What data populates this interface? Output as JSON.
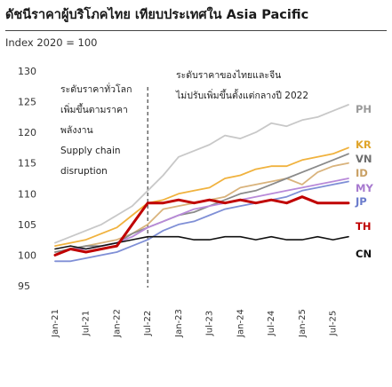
{
  "title": "ดัชนีราคาผู้บริโภคไทย เทียบประเทศใน Asia Pacific",
  "subtitle": "Index 2020 = 100",
  "annotations": {
    "left_line1": "ระดับราคาทั่วโลก",
    "left_line2": "เพิ่มขึ้นตามราคา",
    "left_line3": "พลังงาน",
    "left_line4": "Supply chain",
    "left_line5": "disruption",
    "right_line1": "ระดับราคาของไทยและจีน",
    "right_line2": "ไม่ปรับเพิ่มขึ้นตั้งแต่กลางปี 2022"
  },
  "chart_data": {
    "type": "line",
    "title": "ดัชนีราคาผู้บริโภคไทย เทียบประเทศใน Asia Pacific",
    "ylabel": "Index 2020 = 100",
    "xlabel": "",
    "ylim": [
      95,
      130
    ],
    "y_ticks": [
      95,
      100,
      105,
      110,
      115,
      120,
      125,
      130
    ],
    "x_ticks": [
      "Jan-21",
      "Jul-21",
      "Jan-22",
      "Jul-22",
      "Jan-23",
      "Jul-23",
      "Jan-24",
      "Jul-24",
      "Jan-25",
      "Jul-25"
    ],
    "x": [
      "Jan-21",
      "Apr-21",
      "Jul-21",
      "Oct-21",
      "Jan-22",
      "Apr-22",
      "Jul-22",
      "Oct-22",
      "Jan-23",
      "Apr-23",
      "Jul-23",
      "Oct-23",
      "Jan-24",
      "Apr-24",
      "Jul-24",
      "Oct-24",
      "Jan-25",
      "Apr-25",
      "Jul-25",
      "Oct-25"
    ],
    "vline_at": "Jul-22",
    "series": [
      {
        "name": "PH",
        "color": "#c8c8c8",
        "values": [
          102.0,
          103.0,
          104.0,
          105.0,
          106.5,
          108.0,
          110.5,
          113.0,
          116.0,
          117.0,
          118.0,
          119.5,
          119.0,
          120.0,
          121.5,
          121.0,
          122.0,
          122.5,
          123.5,
          124.5
        ]
      },
      {
        "name": "KR",
        "color": "#f0b23e",
        "values": [
          101.5,
          102.0,
          102.5,
          103.5,
          104.5,
          106.5,
          108.5,
          109.0,
          110.0,
          110.5,
          111.0,
          112.5,
          113.0,
          114.0,
          114.5,
          114.5,
          115.5,
          116.0,
          116.5,
          117.5
        ]
      },
      {
        "name": "VN",
        "color": "#8a8a8a",
        "values": [
          100.5,
          101.0,
          101.5,
          101.5,
          102.0,
          103.5,
          104.5,
          105.5,
          106.5,
          107.0,
          108.0,
          109.0,
          110.0,
          110.5,
          111.5,
          112.5,
          113.5,
          114.5,
          115.5,
          116.5
        ]
      },
      {
        "name": "ID",
        "color": "#d9b37c",
        "values": [
          100.5,
          101.0,
          101.5,
          102.0,
          102.5,
          103.5,
          105.0,
          107.5,
          108.0,
          108.5,
          109.0,
          109.5,
          111.0,
          111.5,
          112.0,
          112.5,
          111.5,
          113.5,
          114.5,
          115.0
        ]
      },
      {
        "name": "MY",
        "color": "#b88ad9",
        "values": [
          100.0,
          101.0,
          101.0,
          101.5,
          102.0,
          103.0,
          104.5,
          105.5,
          106.5,
          107.5,
          108.0,
          108.5,
          109.0,
          109.5,
          110.0,
          110.5,
          111.0,
          111.5,
          112.0,
          112.5
        ]
      },
      {
        "name": "JP",
        "color": "#7f8fd6",
        "values": [
          99.0,
          99.0,
          99.5,
          100.0,
          100.5,
          101.5,
          102.5,
          104.0,
          105.0,
          105.5,
          106.5,
          107.5,
          108.0,
          108.5,
          109.0,
          109.5,
          110.5,
          111.0,
          111.5,
          112.0
        ]
      },
      {
        "name": "TH",
        "color": "#c00000",
        "values": [
          100.0,
          101.0,
          100.5,
          101.0,
          101.5,
          105.0,
          108.5,
          108.5,
          109.0,
          108.5,
          109.0,
          108.5,
          109.0,
          108.5,
          109.0,
          108.5,
          109.5,
          108.5,
          108.5,
          108.5
        ]
      },
      {
        "name": "CN",
        "color": "#111111",
        "values": [
          101.0,
          101.5,
          101.0,
          101.5,
          102.0,
          102.5,
          103.0,
          103.0,
          103.0,
          102.5,
          102.5,
          103.0,
          103.0,
          102.5,
          103.0,
          102.5,
          102.5,
          103.0,
          102.5,
          103.0
        ]
      }
    ]
  }
}
